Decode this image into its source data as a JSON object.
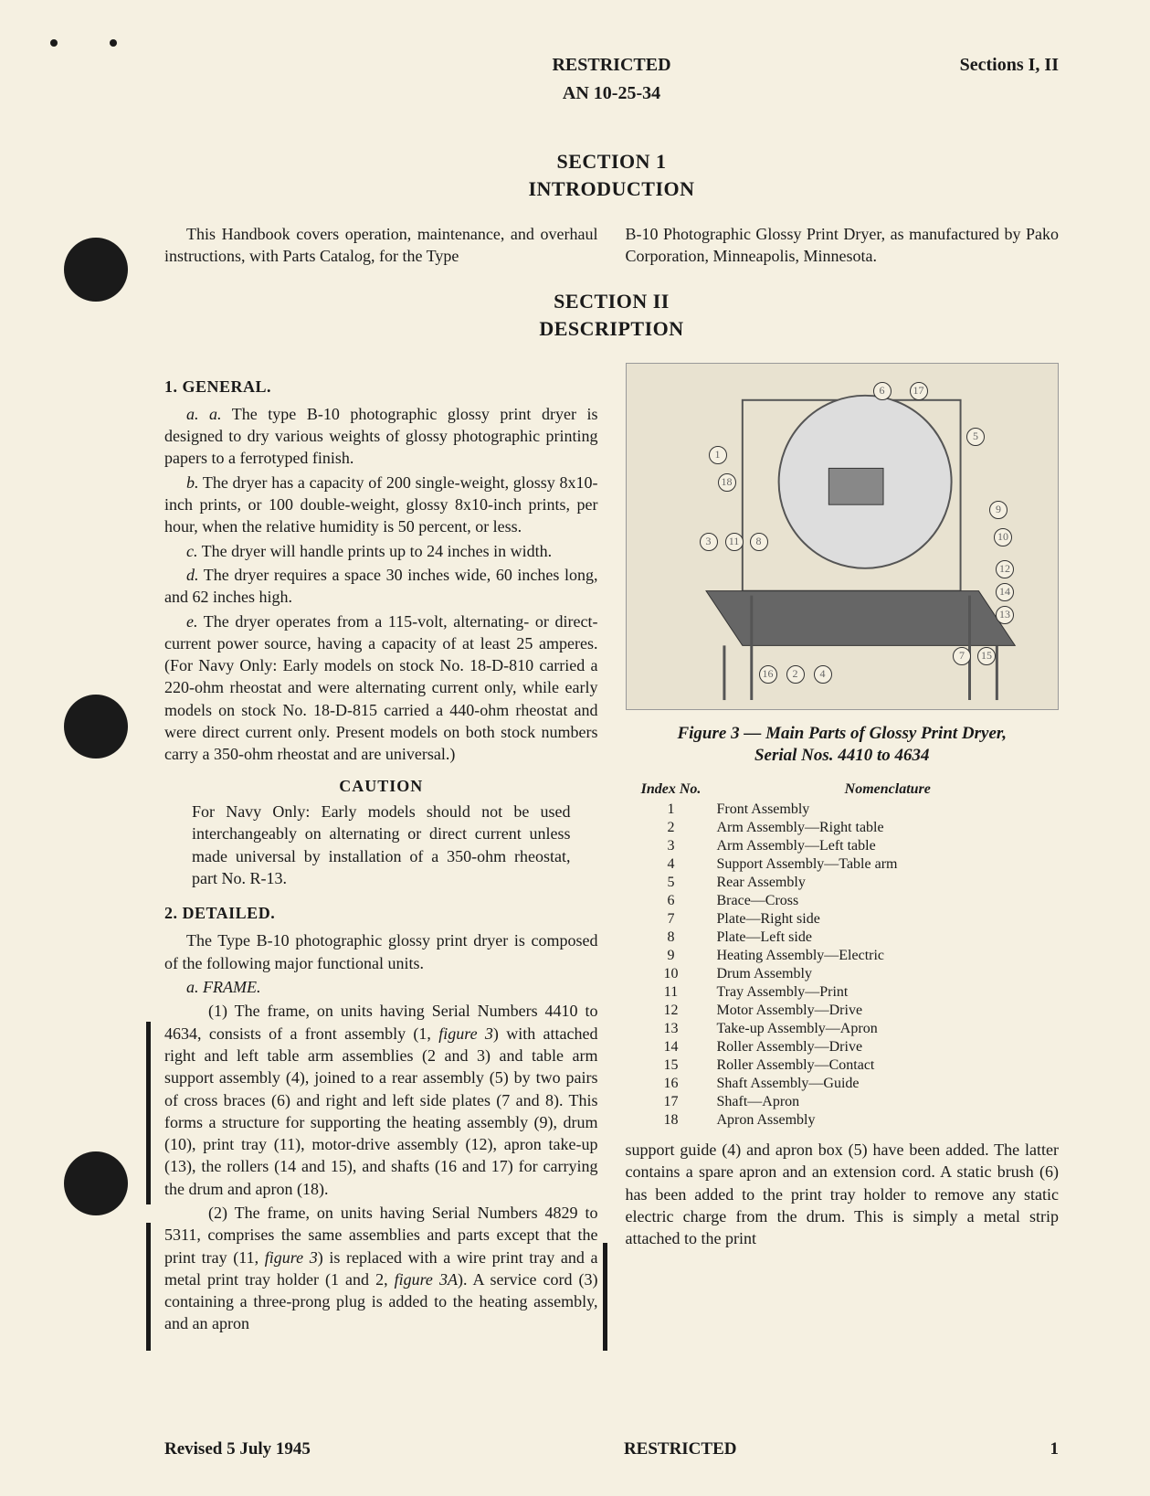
{
  "header": {
    "classification": "RESTRICTED",
    "docnum": "AN 10-25-34",
    "sections": "Sections I, II"
  },
  "section1": {
    "title": "SECTION 1",
    "subtitle": "INTRODUCTION",
    "left": "This Handbook covers operation, maintenance, and overhaul instructions, with Parts Catalog, for the Type",
    "right": "B-10 Photographic Glossy Print Dryer, as manufactured by Pako Corporation, Minneapolis, Minnesota."
  },
  "section2": {
    "title": "SECTION II",
    "subtitle": "DESCRIPTION"
  },
  "general": {
    "heading": "1. GENERAL.",
    "a": "a. The type B-10 photographic glossy print dryer is designed to dry various weights of glossy photographic printing papers to a ferrotyped finish.",
    "b": "b. The dryer has a capacity of 200 single-weight, glossy 8x10-inch prints, or 100 double-weight, glossy 8x10-inch prints, per hour, when the relative humidity is 50 percent, or less.",
    "c": "c. The dryer will handle prints up to 24 inches in width.",
    "d": "d. The dryer requires a space 30 inches wide, 60 inches long, and 62 inches high.",
    "e": "e. The dryer operates from a 115-volt, alternating- or direct-current power source, having a capacity of at least 25 amperes. (For Navy Only: Early models on stock No. 18-D-810 carried a 220-ohm rheostat and were alternating current only, while early models on stock No. 18-D-815 carried a 440-ohm rheostat and were direct current only. Present models on both stock numbers carry a 350-ohm rheostat and are universal.)"
  },
  "caution": {
    "heading": "CAUTION",
    "body": "For Navy Only: Early models should not be used interchangeably on alternating or direct current unless made universal by installation of a 350-ohm rheostat, part No. R-13."
  },
  "detailed": {
    "heading": "2. DETAILED.",
    "intro": "The Type B-10 photographic glossy print dryer is composed of the following major functional units.",
    "a_head": "a. FRAME.",
    "p1": "(1) The frame, on units having Serial Numbers 4410 to 4634, consists of a front assembly (1, figure 3) with attached right and left table arm assemblies (2 and 3) and table arm support assembly (4), joined to a rear assembly (5) by two pairs of cross braces (6) and right and left side plates (7 and 8). This forms a structure for supporting the heating assembly (9), drum (10), print tray (11), motor-drive assembly (12), apron take-up (13), the rollers (14 and 15), and shafts (16 and 17) for carrying the drum and apron (18).",
    "p2": "(2) The frame, on units having Serial Numbers 4829 to 5311, comprises the same assemblies and parts except that the print tray (11, figure 3) is replaced with a wire print tray and a metal print tray holder (1 and 2, figure 3A). A service cord (3) containing a three-prong plug is added to the heating assembly, and an apron"
  },
  "figure": {
    "caption_l1": "Figure 3 — Main Parts of Glossy Print Dryer,",
    "caption_l2": "Serial Nos. 4410 to 4634",
    "header_idx": "Index No.",
    "header_nom": "Nomenclature",
    "items": [
      {
        "n": "1",
        "t": "Front Assembly"
      },
      {
        "n": "2",
        "t": "Arm Assembly—Right table"
      },
      {
        "n": "3",
        "t": "Arm Assembly—Left table"
      },
      {
        "n": "4",
        "t": "Support Assembly—Table arm"
      },
      {
        "n": "5",
        "t": "Rear Assembly"
      },
      {
        "n": "6",
        "t": "Brace—Cross"
      },
      {
        "n": "7",
        "t": "Plate—Right side"
      },
      {
        "n": "8",
        "t": "Plate—Left side"
      },
      {
        "n": "9",
        "t": "Heating Assembly—Electric"
      },
      {
        "n": "10",
        "t": "Drum Assembly"
      },
      {
        "n": "11",
        "t": "Tray Assembly—Print"
      },
      {
        "n": "12",
        "t": "Motor Assembly—Drive"
      },
      {
        "n": "13",
        "t": "Take-up Assembly—Apron"
      },
      {
        "n": "14",
        "t": "Roller Assembly—Drive"
      },
      {
        "n": "15",
        "t": "Roller Assembly—Contact"
      },
      {
        "n": "16",
        "t": "Shaft Assembly—Guide"
      },
      {
        "n": "17",
        "t": "Shaft—Apron"
      },
      {
        "n": "18",
        "t": "Apron Assembly"
      }
    ]
  },
  "bottom_right": "support guide (4) and apron box (5) have been added. The latter contains a spare apron and an extension cord. A static brush (6) has been added to the print tray holder to remove any static electric charge from the drum. This is simply a metal strip attached to the print",
  "footer": {
    "revised": "Revised 5 July 1945",
    "classification": "RESTRICTED",
    "page": "1"
  },
  "callouts": [
    "1",
    "2",
    "3",
    "4",
    "5",
    "6",
    "7",
    "8",
    "9",
    "10",
    "11",
    "12",
    "13",
    "14",
    "15",
    "16",
    "17",
    "18"
  ]
}
